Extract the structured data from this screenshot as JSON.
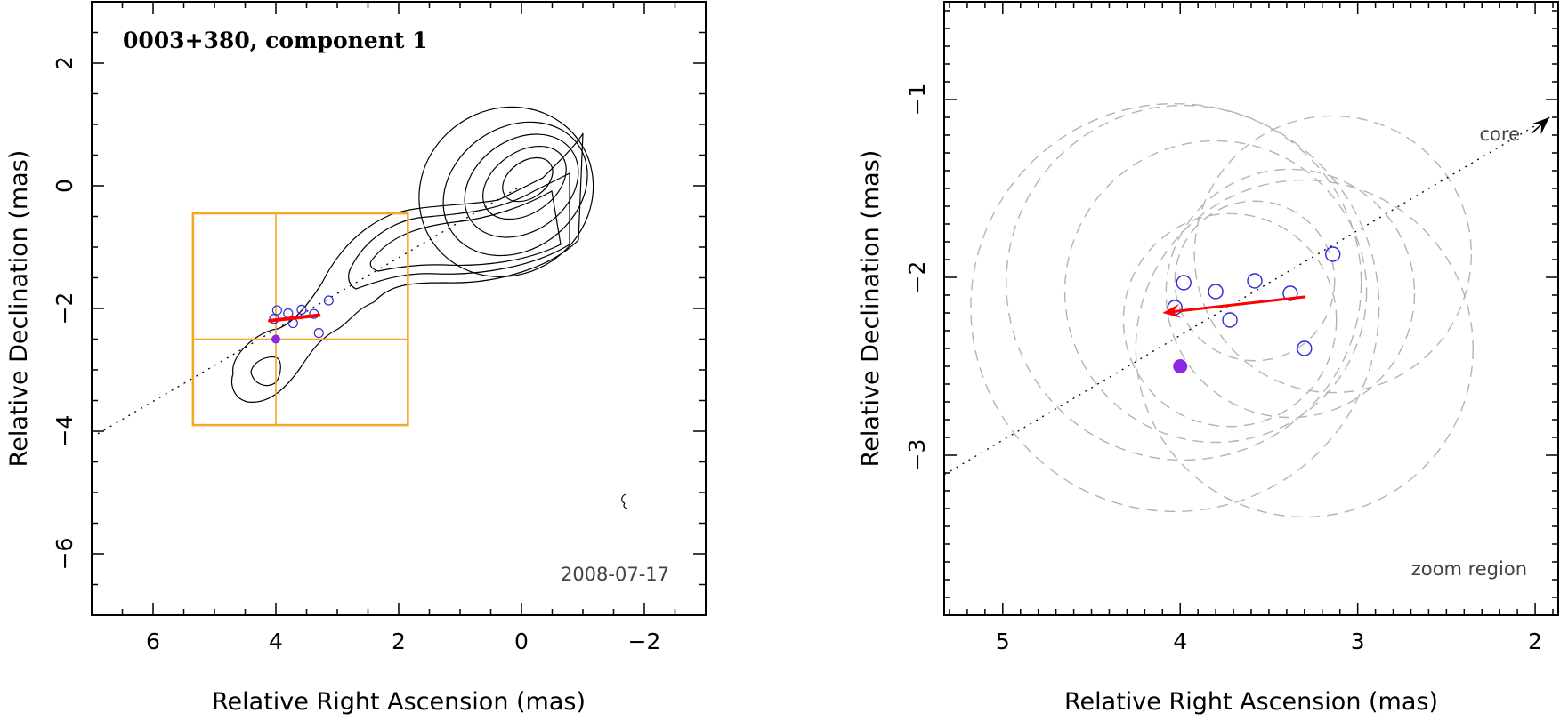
{
  "colors": {
    "axis": "#000000",
    "contour": "#000000",
    "box": "#f5a623",
    "component": "#2b2bd9",
    "arrow": "#ff0000",
    "reference": "#8a2be2",
    "dashed_circle": "#b4b4b4"
  },
  "chart_data": [
    {
      "type": "scatter",
      "panel": "full-map",
      "title": "0003+380, component 1",
      "date_label": "2008-07-17",
      "xlabel": "Relative Right Ascension (mas)",
      "ylabel": "Relative Declination (mas)",
      "xlim": [
        7,
        -3
      ],
      "ylim": [
        -7,
        3
      ],
      "xticks": [
        6,
        4,
        2,
        0,
        -2
      ],
      "yticks": [
        2,
        0,
        -2,
        -4,
        -6
      ],
      "tick_labels": {
        "x": [
          "6",
          "4",
          "2",
          "0",
          "−2"
        ],
        "y": [
          "2",
          "0",
          "−2",
          "−4",
          "−6"
        ]
      },
      "jet_axis": {
        "from": [
          7,
          -4.1
        ],
        "to": [
          0,
          0
        ]
      },
      "zoom_box": {
        "x": [
          5.35,
          1.85
        ],
        "y": [
          -3.9,
          -0.45
        ],
        "cross": [
          4,
          -2.5
        ]
      },
      "components": [
        {
          "x": 3.98,
          "y": -2.03
        },
        {
          "x": 3.8,
          "y": -2.08
        },
        {
          "x": 3.58,
          "y": -2.02
        },
        {
          "x": 3.38,
          "y": -2.09
        },
        {
          "x": 3.14,
          "y": -1.87
        },
        {
          "x": 3.72,
          "y": -2.24
        },
        {
          "x": 3.3,
          "y": -2.4
        },
        {
          "x": 4.03,
          "y": -2.17
        }
      ],
      "motion_arrow": {
        "from": [
          3.3,
          -2.11
        ],
        "to": [
          4.1,
          -2.2
        ]
      },
      "reference_point": {
        "x": 4.0,
        "y": -2.5
      },
      "contours": [
        {
          "cx": -0.1,
          "cy": 0.1,
          "rx": 0.3,
          "ry": 0.45,
          "rot": 55
        },
        {
          "cx": -0.05,
          "cy": 0.05,
          "rx": 0.5,
          "ry": 0.75,
          "rot": 55
        },
        {
          "cx": 0.0,
          "cy": 0.0,
          "rx": 0.75,
          "ry": 1.0,
          "rot": 55
        },
        {
          "cx": 0.1,
          "cy": -0.05,
          "rx": 1.0,
          "ry": 1.25,
          "rot": 55
        },
        {
          "cx": 0.25,
          "cy": -0.1,
          "rx": 1.35,
          "ry": 1.45,
          "rot": 55
        }
      ]
    },
    {
      "type": "scatter",
      "panel": "zoom",
      "core_label": "core",
      "region_label": "zoom region",
      "xlabel": "Relative Right Ascension (mas)",
      "ylabel": "Relative Declination (mas)",
      "xlim": [
        5.33,
        1.87
      ],
      "ylim": [
        -3.9,
        -0.45
      ],
      "xticks": [
        5,
        4,
        3,
        2
      ],
      "yticks": [
        -1,
        -2,
        -3
      ],
      "tick_labels": {
        "x": [
          "5",
          "4",
          "3",
          "2"
        ],
        "y": [
          "−1",
          "−2",
          "−3"
        ]
      },
      "jet_axis": {
        "from": [
          5.33,
          -3.11
        ],
        "to": [
          1.92,
          -1.1
        ]
      },
      "core_arrow": {
        "from": [
          2.02,
          -1.19
        ],
        "to": [
          1.92,
          -1.1
        ]
      },
      "components": [
        {
          "x": 3.98,
          "y": -2.03
        },
        {
          "x": 3.8,
          "y": -2.08
        },
        {
          "x": 3.58,
          "y": -2.02
        },
        {
          "x": 3.38,
          "y": -2.09
        },
        {
          "x": 3.14,
          "y": -1.87
        },
        {
          "x": 3.72,
          "y": -2.24
        },
        {
          "x": 3.3,
          "y": -2.4
        },
        {
          "x": 4.03,
          "y": -2.17
        }
      ],
      "motion_arrow": {
        "from": [
          3.3,
          -2.11
        ],
        "to": [
          4.1,
          -2.2
        ]
      },
      "reference_point": {
        "x": 4.0,
        "y": -2.5
      },
      "uncertainty_circles": [
        {
          "x": 3.98,
          "y": -2.03,
          "r": 1.0
        },
        {
          "x": 3.8,
          "y": -2.08,
          "r": 0.85
        },
        {
          "x": 3.58,
          "y": -2.02,
          "r": 0.45
        },
        {
          "x": 3.38,
          "y": -2.09,
          "r": 0.7
        },
        {
          "x": 3.14,
          "y": -1.87,
          "r": 0.78
        },
        {
          "x": 3.72,
          "y": -2.24,
          "r": 0.6
        },
        {
          "x": 3.3,
          "y": -2.4,
          "r": 0.95
        },
        {
          "x": 4.03,
          "y": -2.17,
          "r": 1.15
        }
      ]
    }
  ]
}
